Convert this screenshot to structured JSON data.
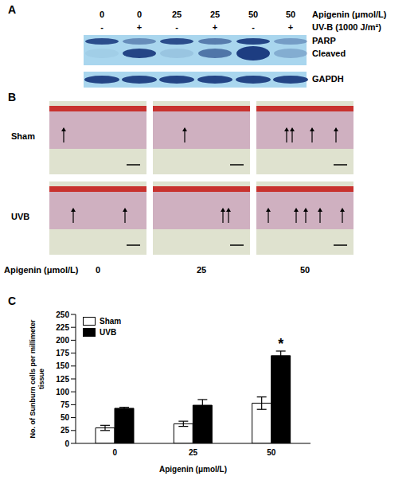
{
  "panel_letters": [
    "A",
    "B",
    "C"
  ],
  "western_blot": {
    "lane_labels": {
      "title": "Apigenin (μmol/L)",
      "values": [
        "0",
        "0",
        "25",
        "25",
        "50",
        "50"
      ]
    },
    "treatment_labels": {
      "title": "UV-B (1000 J/m²)",
      "values": [
        "-",
        "+",
        "-",
        "+",
        "-",
        "+"
      ]
    },
    "bands": [
      "PARP",
      "Cleaved",
      "GAPDH"
    ]
  },
  "histology": {
    "rows": [
      "Sham",
      "UVB"
    ],
    "columns": [
      "0",
      "25",
      "50"
    ],
    "column_title": "Apigenin (μmol/L)"
  },
  "chart_data": {
    "type": "bar",
    "categories": [
      "0",
      "25",
      "50"
    ],
    "x_label": "Apigenin (μmol/L)",
    "y_label": "No. of Sunburn cells per millimeter tissue",
    "ylim": [
      0,
      250
    ],
    "yticks": [
      0,
      25,
      50,
      75,
      100,
      125,
      150,
      175,
      200,
      225,
      250
    ],
    "series": [
      {
        "name": "Sham",
        "color": "#ffffff",
        "values": [
          30,
          38,
          78
        ],
        "errors": [
          5,
          5,
          12
        ]
      },
      {
        "name": "UVB",
        "color": "#000000",
        "values": [
          68,
          74,
          170
        ],
        "errors": [
          2,
          11,
          9
        ]
      }
    ],
    "legend": "upper left",
    "grid": false,
    "annotations": [
      {
        "text": "*",
        "category": "50",
        "series": "UVB"
      }
    ]
  }
}
